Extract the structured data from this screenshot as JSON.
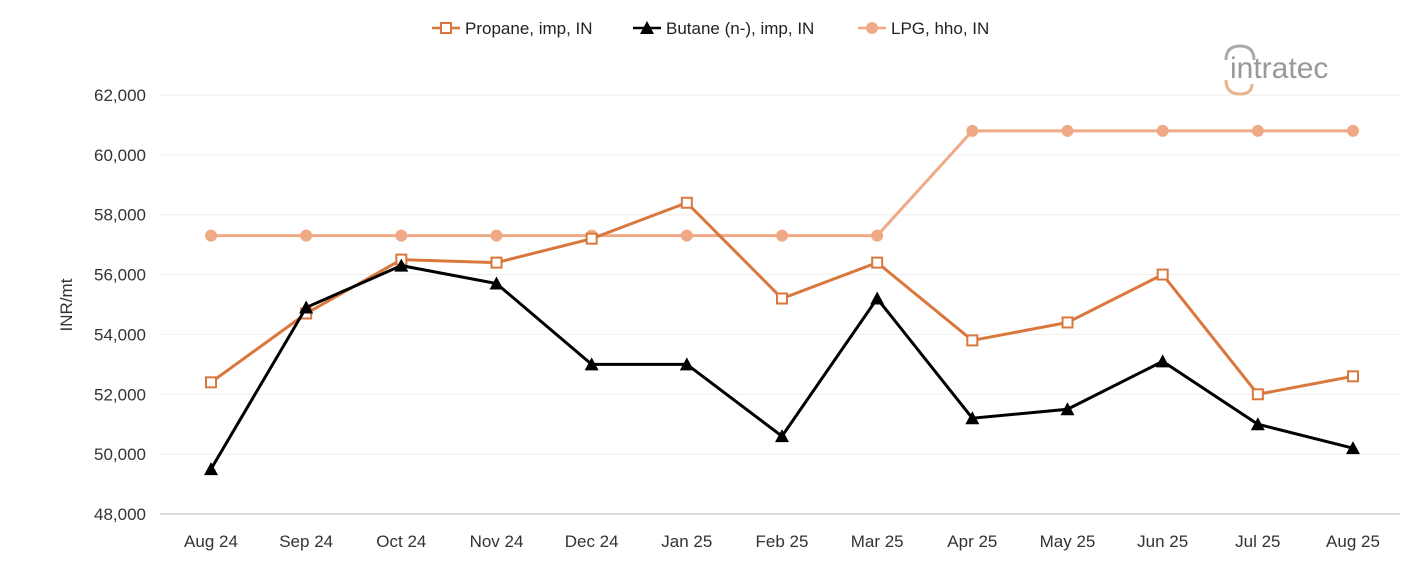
{
  "chart_data": {
    "type": "line",
    "categories": [
      "Aug 24",
      "Sep 24",
      "Oct 24",
      "Nov 24",
      "Dec 24",
      "Jan 25",
      "Feb 25",
      "Mar 25",
      "Apr 25",
      "May 25",
      "Jun 25",
      "Jul 25",
      "Aug 25"
    ],
    "ylabel": "INR/mt",
    "ylim": [
      48000,
      62000
    ],
    "yticks": [
      48000,
      50000,
      52000,
      54000,
      56000,
      58000,
      60000,
      62000
    ],
    "ytick_labels": [
      "48,000",
      "50,000",
      "52,000",
      "54,000",
      "56,000",
      "58,000",
      "60,000",
      "62,000"
    ],
    "grid": true,
    "legend": "top",
    "series": [
      {
        "name": "Propane, imp, IN",
        "color": "#d9773d",
        "marker": "open-square",
        "values": [
          52400,
          54700,
          56500,
          56400,
          57200,
          58400,
          55200,
          56400,
          53800,
          54400,
          56000,
          52000,
          52600
        ]
      },
      {
        "name": "Butane (n-), imp, IN",
        "color": "#000000",
        "marker": "triangle",
        "values": [
          49500,
          54900,
          56300,
          55700,
          53000,
          53000,
          50600,
          55200,
          51200,
          51500,
          53100,
          51000,
          50200
        ]
      },
      {
        "name": "LPG, hho, IN",
        "color": "#efaa85",
        "marker": "circle",
        "values": [
          57300,
          57300,
          57300,
          57300,
          57300,
          57300,
          57300,
          57300,
          60800,
          60800,
          60800,
          60800,
          60800
        ]
      }
    ]
  },
  "logo": {
    "text": "intratec"
  }
}
